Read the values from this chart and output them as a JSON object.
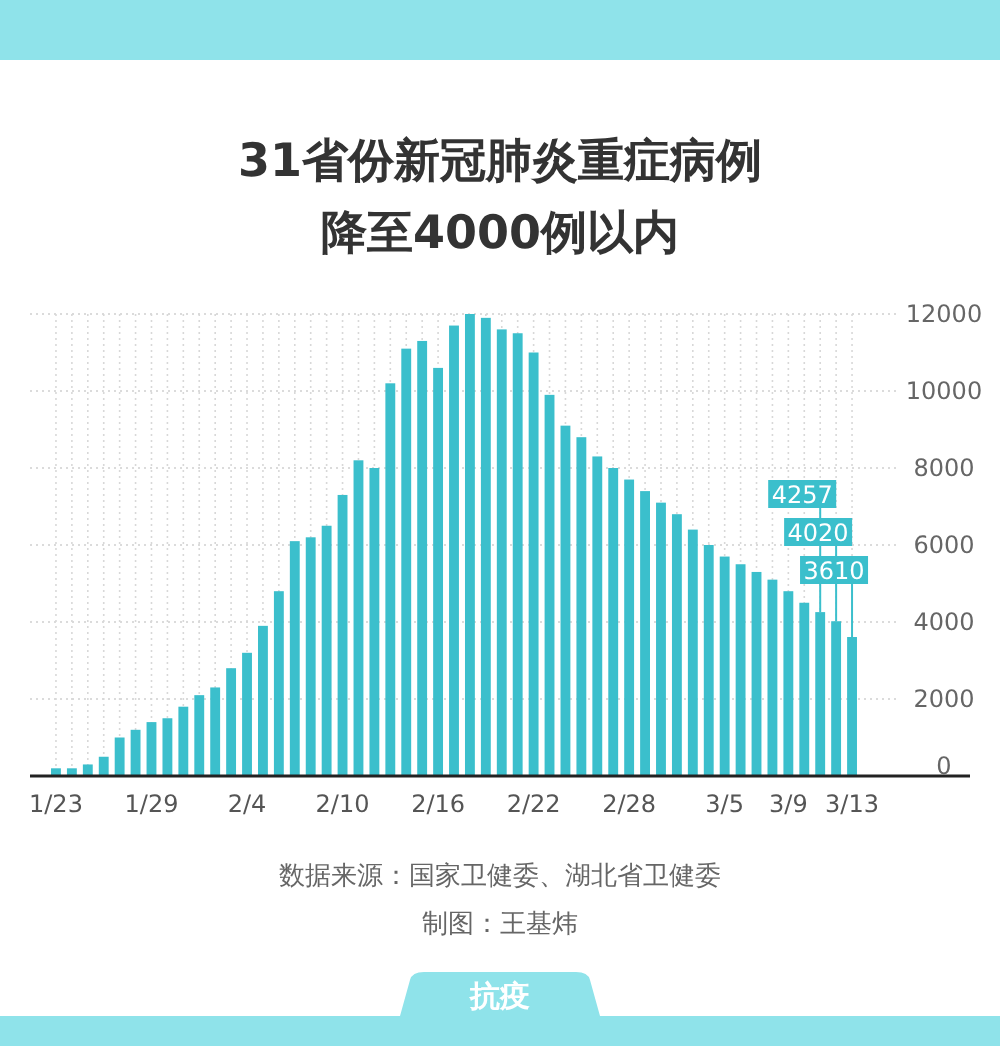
{
  "chart_data": {
    "type": "bar",
    "title": "31省份新冠肺炎重症病例降至4000例以内",
    "categories": [
      "1/23",
      null,
      null,
      null,
      null,
      null,
      "1/29",
      null,
      null,
      null,
      null,
      null,
      "2/4",
      null,
      null,
      null,
      null,
      null,
      "2/10",
      null,
      null,
      null,
      null,
      null,
      "2/16",
      null,
      null,
      null,
      null,
      null,
      "2/22",
      null,
      null,
      null,
      null,
      null,
      "2/28",
      null,
      null,
      null,
      null,
      null,
      "3/5",
      null,
      null,
      null,
      "3/9",
      null,
      null,
      null,
      "3/13"
    ],
    "values": [
      200,
      200,
      300,
      500,
      1000,
      1200,
      1400,
      1500,
      1800,
      2100,
      2300,
      2800,
      3200,
      3900,
      4800,
      6100,
      6200,
      6500,
      7300,
      8200,
      8000,
      10200,
      11100,
      11300,
      10600,
      11700,
      12000,
      11900,
      11600,
      11500,
      11000,
      9900,
      9100,
      8800,
      8300,
      8000,
      7700,
      7400,
      7100,
      6800,
      6400,
      6000,
      5700,
      5500,
      5300,
      5100,
      4800,
      4500,
      4257,
      4020,
      3610
    ],
    "value_labels": [
      null,
      null,
      null,
      null,
      null,
      null,
      null,
      null,
      null,
      null,
      null,
      null,
      null,
      null,
      null,
      null,
      null,
      null,
      null,
      null,
      null,
      null,
      null,
      null,
      null,
      null,
      null,
      null,
      null,
      null,
      null,
      null,
      null,
      null,
      null,
      null,
      null,
      null,
      null,
      null,
      null,
      null,
      null,
      null,
      null,
      null,
      null,
      null,
      "4257",
      "4020",
      "3610"
    ],
    "color": "#3bbfcc",
    "ylim": [
      0,
      12000
    ],
    "yticks": [
      0,
      2000,
      4000,
      6000,
      8000,
      10000,
      12000
    ],
    "grid": true,
    "annotations": [
      "数据来源：国家卫健委、湖北省卫健委",
      "制图：王基炜",
      "抗疫"
    ]
  }
}
